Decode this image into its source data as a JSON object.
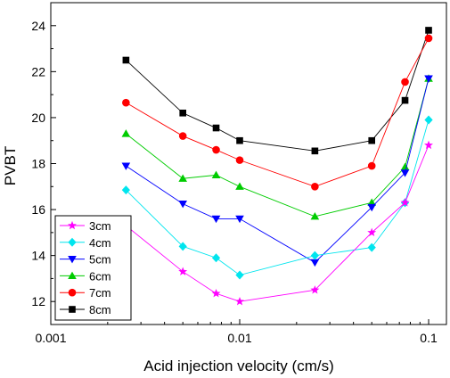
{
  "chart_data": {
    "type": "line",
    "xlabel": "Acid injection velocity (cm/s)",
    "ylabel": "PVBT",
    "x_scale": "log",
    "xlim": [
      0.001,
      0.1
    ],
    "ylim": [
      11,
      25
    ],
    "x_ticks": [
      0.001,
      0.01,
      0.1
    ],
    "x_tick_labels": [
      "0.001",
      "0.01",
      "0.1"
    ],
    "y_ticks": [
      12,
      14,
      16,
      18,
      20,
      22,
      24
    ],
    "y_tick_labels": [
      "12",
      "14",
      "16",
      "18",
      "20",
      "22",
      "24"
    ],
    "grid": false,
    "legend_position": "bottom-left",
    "x": [
      0.0025,
      0.005,
      0.0075,
      0.01,
      0.025,
      0.05,
      0.075,
      0.1
    ],
    "series": [
      {
        "name": "3cm",
        "color": "#ff00ff",
        "marker": "star",
        "values": [
          15.3,
          13.3,
          12.35,
          12.0,
          12.5,
          15.0,
          16.3,
          18.8
        ]
      },
      {
        "name": "4cm",
        "color": "#00e5ee",
        "marker": "diamond",
        "values": [
          16.85,
          14.4,
          13.9,
          13.15,
          14.0,
          14.35,
          16.3,
          19.9
        ]
      },
      {
        "name": "5cm",
        "color": "#0000ff",
        "marker": "triangle-down",
        "values": [
          17.9,
          16.25,
          15.6,
          15.6,
          13.7,
          16.1,
          17.6,
          21.7
        ]
      },
      {
        "name": "6cm",
        "color": "#00cc00",
        "marker": "triangle-up",
        "values": [
          19.3,
          17.35,
          17.5,
          17.0,
          15.7,
          16.3,
          17.85,
          21.7
        ]
      },
      {
        "name": "7cm",
        "color": "#ff0000",
        "marker": "circle",
        "values": [
          20.65,
          19.2,
          18.6,
          18.15,
          17.0,
          17.9,
          21.55,
          23.45
        ]
      },
      {
        "name": "8cm",
        "color": "#000000",
        "marker": "square",
        "values": [
          22.5,
          20.2,
          19.55,
          19.0,
          18.55,
          19.0,
          20.75,
          23.8
        ]
      }
    ]
  }
}
